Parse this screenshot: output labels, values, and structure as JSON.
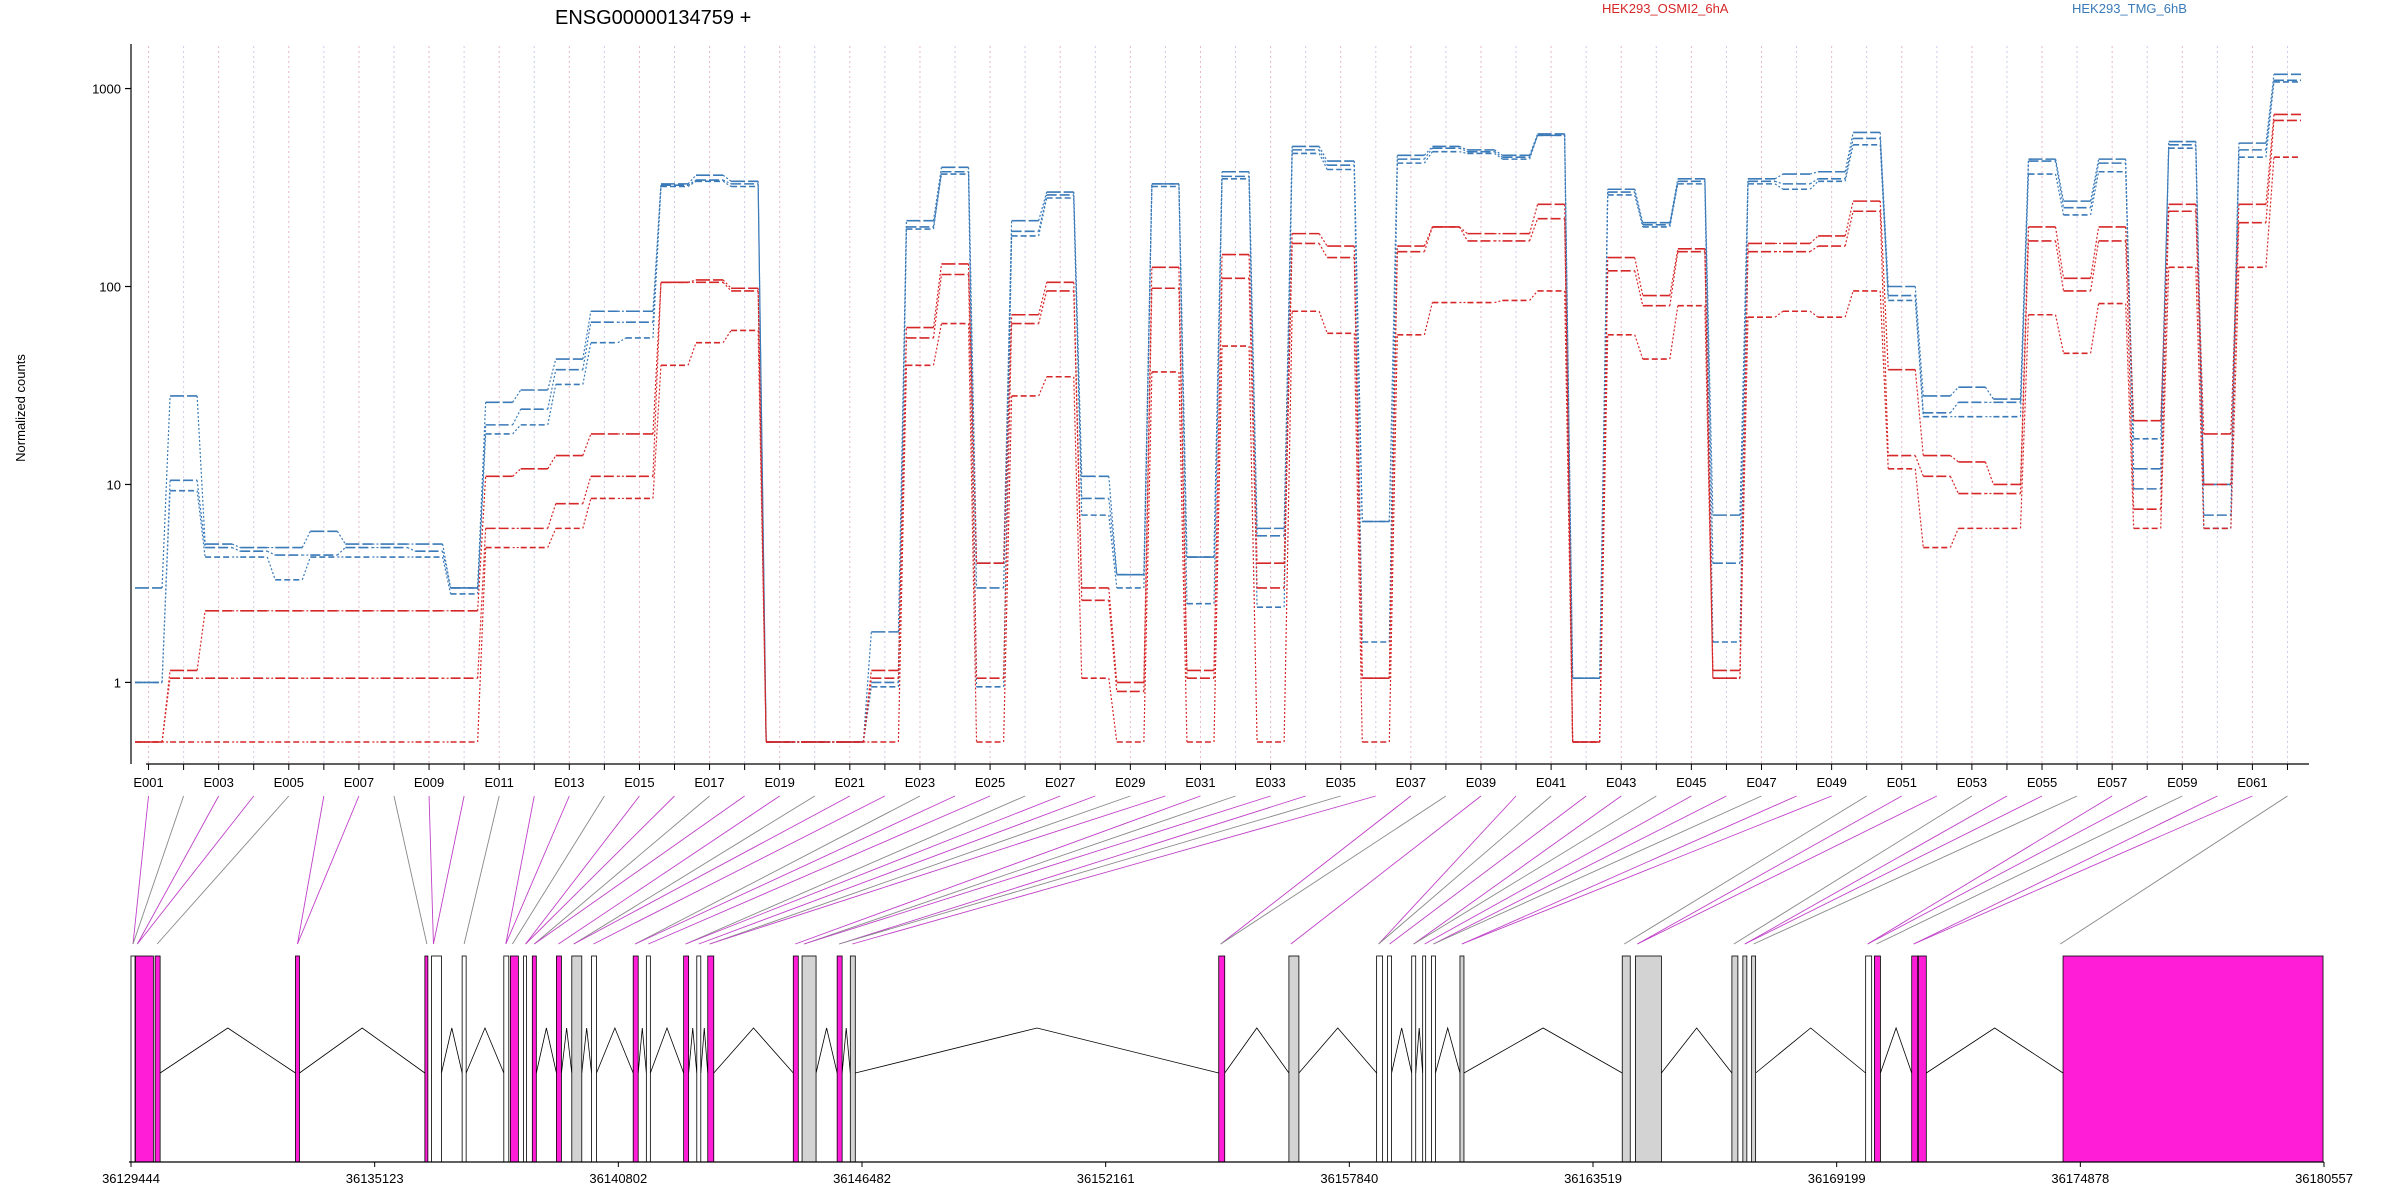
{
  "chart_data": {
    "type": "line",
    "title": "ENSG00000134759 +",
    "xlabel": "",
    "ylabel": "Normalized counts",
    "y_scale": "log",
    "ylim": [
      0.5,
      1300
    ],
    "y_ticks": [
      1,
      10,
      100,
      1000
    ],
    "y_tick_labels": [
      "1",
      "10",
      "100",
      "1000"
    ],
    "grid": "vertical dotted lines at each exon",
    "legend": [
      {
        "label": "HEK293_OSMI2_6hA",
        "color": "#d62728"
      },
      {
        "label": "HEK293_TMG_6hB",
        "color": "#3a7ab8"
      }
    ],
    "exons": [
      "E001",
      "E002",
      "E003",
      "E004",
      "E005",
      "E006",
      "E007",
      "E008",
      "E009",
      "E010",
      "E011",
      "E012",
      "E013",
      "E014",
      "E015",
      "E016",
      "E017",
      "E018",
      "E019",
      "E020",
      "E021",
      "E022",
      "E023",
      "E024",
      "E025",
      "E026",
      "E027",
      "E028",
      "E029",
      "E030",
      "E031",
      "E032",
      "E033",
      "E034",
      "E035",
      "E036",
      "E037",
      "E038",
      "E039",
      "E040",
      "E041",
      "E042",
      "E043",
      "E044",
      "E045",
      "E046",
      "E047",
      "E048",
      "E049",
      "E050",
      "E051",
      "E052",
      "E053",
      "E054",
      "E055",
      "E056",
      "E057",
      "E058",
      "E059",
      "E060",
      "E061",
      "E062"
    ],
    "x_tick_labels": [
      "E001",
      "E003",
      "E005",
      "E007",
      "E009",
      "E011",
      "E013",
      "E015",
      "E017",
      "E019",
      "E021",
      "E023",
      "E025",
      "E027",
      "E029",
      "E031",
      "E033",
      "E035",
      "E037",
      "E039",
      "E041",
      "E043",
      "E045",
      "E047",
      "E049",
      "E051",
      "E053",
      "E055",
      "E057",
      "E059",
      "E061"
    ],
    "series": [
      {
        "name": "HEK293_TMG_6hB",
        "color": "#3a7ab8",
        "values": [
          3,
          28,
          5,
          4.8,
          4.8,
          5.8,
          5,
          5,
          5,
          3,
          26,
          30,
          43,
          75,
          75,
          330,
          365,
          340,
          0.5,
          0.5,
          0.5,
          1.8,
          215,
          400,
          4,
          215,
          300,
          11,
          3.5,
          330,
          4.3,
          380,
          6,
          510,
          430,
          6.5,
          460,
          510,
          490,
          460,
          590,
          1.05,
          310,
          210,
          350,
          7,
          350,
          370,
          380,
          600,
          100,
          28,
          31,
          27,
          440,
          270,
          440,
          12,
          540,
          10,
          530,
          1180
        ]
      },
      {
        "name": "HEK293_TMG_6hB",
        "color": "#3a7ab8",
        "values": [
          1,
          10.5,
          4.8,
          4.6,
          4.4,
          4.4,
          4.8,
          4.8,
          4.6,
          3,
          20,
          24,
          38,
          66,
          66,
          325,
          345,
          330,
          0.5,
          0.5,
          0.5,
          1,
          200,
          380,
          3,
          190,
          290,
          8.5,
          3.5,
          330,
          4.3,
          360,
          5.5,
          490,
          410,
          6.5,
          440,
          500,
          480,
          450,
          580,
          1.05,
          300,
          205,
          340,
          4,
          340,
          330,
          350,
          560,
          90,
          23,
          26,
          26,
          430,
          250,
          420,
          9.5,
          520,
          7,
          490,
          1100
        ]
      },
      {
        "name": "HEK293_TMG_6hB",
        "color": "#3a7ab8",
        "values": [
          1,
          9.3,
          4.3,
          4.3,
          3.3,
          4.3,
          4.3,
          4.3,
          4.3,
          2.8,
          18,
          20,
          32,
          52,
          55,
          320,
          340,
          320,
          0.5,
          0.5,
          0.5,
          0.95,
          195,
          370,
          0.95,
          180,
          280,
          7,
          3,
          320,
          2.5,
          350,
          2.4,
          470,
          390,
          1.6,
          420,
          480,
          470,
          440,
          580,
          0.5,
          290,
          200,
          330,
          1.6,
          330,
          310,
          340,
          520,
          85,
          22,
          22,
          22,
          370,
          230,
          380,
          17,
          500,
          6,
          450,
          1080
        ]
      },
      {
        "name": "HEK293_OSMI2_6hA",
        "color": "#d62728",
        "values": [
          0.5,
          1.15,
          2.3,
          2.3,
          2.3,
          2.3,
          2.3,
          2.3,
          2.3,
          2.3,
          11,
          12,
          14,
          18,
          18,
          105,
          108,
          98,
          0.5,
          0.5,
          0.5,
          1.15,
          62,
          130,
          4,
          72,
          105,
          3,
          1,
          125,
          1.15,
          145,
          4,
          185,
          160,
          1.05,
          160,
          200,
          185,
          185,
          260,
          0.5,
          140,
          90,
          155,
          1.15,
          165,
          165,
          180,
          270,
          38,
          14,
          13,
          10,
          200,
          110,
          200,
          21,
          260,
          18,
          260,
          740
        ]
      },
      {
        "name": "HEK293_OSMI2_6hA",
        "color": "#d62728",
        "values": [
          0.5,
          1.05,
          1.05,
          1.05,
          1.05,
          1.05,
          1.05,
          1.05,
          1.05,
          1.05,
          6,
          6,
          8,
          11,
          11,
          105,
          105,
          95,
          0.5,
          0.5,
          0.5,
          1.05,
          55,
          115,
          1.05,
          65,
          95,
          2.6,
          0.9,
          98,
          1.05,
          110,
          3,
          165,
          140,
          1.05,
          150,
          200,
          170,
          170,
          220,
          0.5,
          120,
          80,
          150,
          1.05,
          150,
          150,
          160,
          240,
          14,
          11,
          9,
          9,
          170,
          95,
          170,
          7.5,
          240,
          10,
          210,
          690
        ]
      },
      {
        "name": "HEK293_OSMI2_6hA",
        "color": "#d62728",
        "values": [
          0.5,
          0.5,
          0.5,
          0.5,
          0.5,
          0.5,
          0.5,
          0.5,
          0.5,
          0.5,
          4.8,
          4.8,
          6,
          8.5,
          8.5,
          40,
          52,
          60,
          0.5,
          0.5,
          0.5,
          0.5,
          40,
          65,
          0.5,
          28,
          35,
          1.05,
          0.5,
          37,
          0.5,
          50,
          0.5,
          75,
          58,
          0.5,
          57,
          83,
          83,
          85,
          95,
          0.5,
          57,
          43,
          80,
          1.05,
          70,
          75,
          70,
          95,
          12,
          4.8,
          6,
          6,
          72,
          46,
          82,
          6,
          125,
          6,
          125,
          450
        ]
      }
    ],
    "genome_axis": {
      "labels": [
        "36129444",
        "36135123",
        "36140802",
        "36146482",
        "36152161",
        "36157840",
        "36163519",
        "36169199",
        "36174878",
        "36180557"
      ]
    }
  }
}
